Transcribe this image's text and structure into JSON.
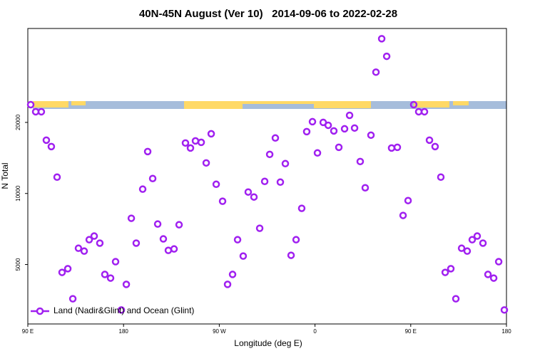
{
  "chart_data": {
    "type": "scatter",
    "title": "40N-45N August (Ver 10)   2014-09-06 to 2022-02-28",
    "x_label": "Longitude (deg E)",
    "y_label": "N Total",
    "log_y": true,
    "legend": "bottom-left",
    "xlim": [
      90,
      540
    ],
    "xticks": [
      {
        "value": 90,
        "label": "90 E"
      },
      {
        "value": 180,
        "label": "180"
      },
      {
        "value": 270,
        "label": "90 W"
      },
      {
        "value": 360,
        "label": "0"
      },
      {
        "value": 450,
        "label": "90 E"
      },
      {
        "value": 540,
        "label": "180"
      }
    ],
    "ylim": [
      2800,
      50000
    ],
    "yticks": [
      5000,
      10000,
      20000
    ],
    "series": [
      {
        "name": "Land (Nadir&Glint) and Ocean (Glint)",
        "color": "#a020f0",
        "x": [
          92.7,
          97.4,
          102.7,
          107.4,
          112.1,
          117.5,
          122.2,
          127.6,
          132.3,
          137.6,
          143.0,
          147.7,
          152.4,
          157.7,
          162.4,
          167.8,
          172.5,
          177.9,
          182.6,
          187.3,
          191.9,
          198.0,
          202.7,
          207.4,
          212.1,
          217.4,
          222.1,
          227.5,
          232.2,
          238.2,
          242.9,
          247.6,
          253.0,
          257.7,
          262.4,
          267.1,
          273.1,
          277.8,
          282.5,
          287.2,
          292.5,
          297.2,
          302.6,
          308.0,
          312.7,
          317.4,
          322.7,
          327.4,
          332.1,
          337.5,
          342.2,
          347.5,
          352.2,
          357.6,
          362.3,
          367.7,
          372.4,
          377.7,
          382.4,
          387.8,
          392.5,
          397.2,
          402.5,
          407.2,
          412.6,
          417.3,
          422.7,
          427.4,
          432.0,
          437.4,
          442.8,
          447.5,
          452.8,
          457.5,
          462.9,
          467.6,
          472.9,
          478.3,
          482.4,
          487.7,
          492.4,
          497.8,
          503.1,
          507.8,
          512.5,
          517.9,
          522.6,
          528.0,
          532.7,
          538.0
        ],
        "values": [
          23780,
          22190,
          22190,
          16820,
          15800,
          11730,
          4630,
          4800,
          3580,
          5860,
          5700,
          6370,
          6600,
          6160,
          4540,
          4380,
          5140,
          3210,
          4120,
          7850,
          6160,
          10430,
          15050,
          11570,
          7420,
          6420,
          5740,
          5820,
          7370,
          16360,
          15580,
          16700,
          16470,
          13470,
          17900,
          10940,
          9270,
          4120,
          4540,
          6370,
          5430,
          10140,
          9660,
          7120,
          11250,
          14640,
          17180,
          11170,
          13380,
          5470,
          6370,
          8650,
          18280,
          20140,
          14850,
          20000,
          19450,
          18410,
          15690,
          18790,
          21430,
          18930,
          13660,
          10570,
          17660,
          32660,
          45250,
          38110,
          15580,
          15690,
          8070,
          9330,
          23780,
          22190,
          22190,
          16820,
          15800,
          11730,
          4630,
          4800,
          3580,
          5860,
          5700,
          6370,
          6600,
          6160,
          4540,
          4380,
          5140,
          3210
        ]
      }
    ]
  }
}
